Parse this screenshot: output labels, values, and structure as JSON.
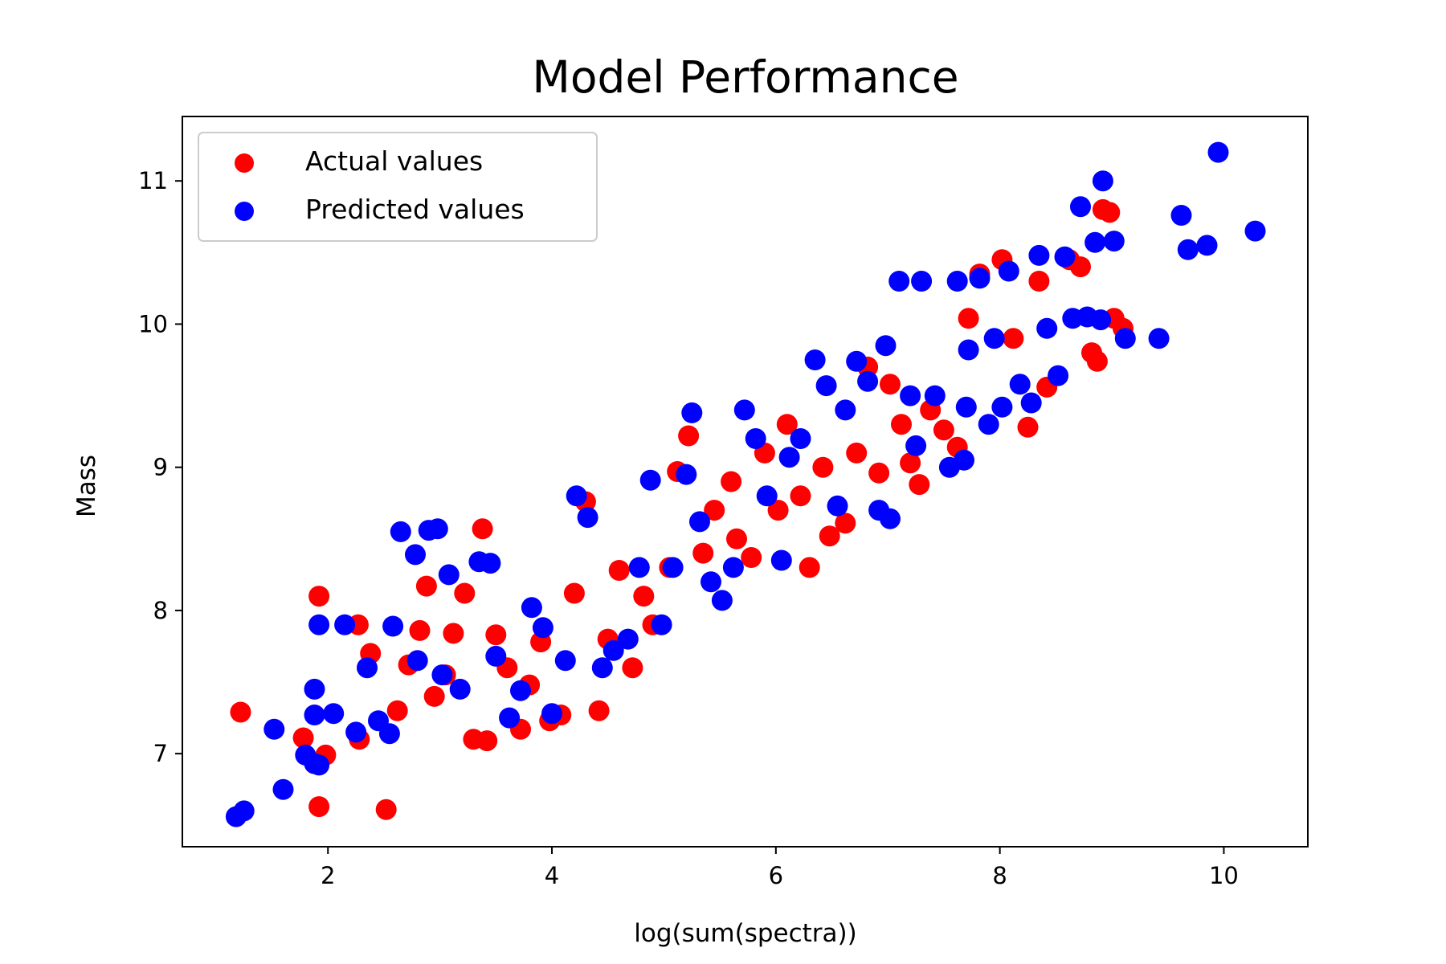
{
  "chart_data": {
    "type": "scatter",
    "title": "Model Performance",
    "xlabel": "log(sum(spectra))",
    "ylabel": "Mass",
    "xlim": [
      0.7,
      10.75
    ],
    "ylim": [
      6.35,
      11.45
    ],
    "xticks": [
      2,
      4,
      6,
      8,
      10
    ],
    "yticks": [
      7,
      8,
      9,
      10,
      11
    ],
    "xtick_labels": [
      "2",
      "4",
      "6",
      "8",
      "10"
    ],
    "ytick_labels": [
      "7",
      "8",
      "9",
      "10",
      "11"
    ],
    "grid": false,
    "legend": {
      "placement": "top-left"
    },
    "series": [
      {
        "name": "Actual values",
        "color": "#ff0000",
        "points": [
          [
            1.22,
            7.29
          ],
          [
            1.78,
            7.11
          ],
          [
            1.92,
            8.1
          ],
          [
            1.92,
            6.63
          ],
          [
            1.98,
            6.99
          ],
          [
            2.27,
            7.9
          ],
          [
            2.28,
            7.1
          ],
          [
            2.38,
            7.7
          ],
          [
            2.52,
            6.61
          ],
          [
            2.62,
            7.3
          ],
          [
            2.72,
            7.62
          ],
          [
            2.82,
            7.86
          ],
          [
            2.88,
            8.17
          ],
          [
            2.95,
            7.4
          ],
          [
            3.05,
            7.55
          ],
          [
            3.12,
            7.84
          ],
          [
            3.22,
            8.12
          ],
          [
            3.3,
            7.1
          ],
          [
            3.38,
            8.57
          ],
          [
            3.42,
            7.09
          ],
          [
            3.5,
            7.83
          ],
          [
            3.6,
            7.6
          ],
          [
            3.72,
            7.17
          ],
          [
            3.8,
            7.48
          ],
          [
            3.9,
            7.78
          ],
          [
            3.98,
            7.23
          ],
          [
            4.08,
            7.27
          ],
          [
            4.2,
            8.12
          ],
          [
            4.3,
            8.76
          ],
          [
            4.42,
            7.3
          ],
          [
            4.5,
            7.8
          ],
          [
            4.6,
            8.28
          ],
          [
            4.72,
            7.6
          ],
          [
            4.82,
            8.1
          ],
          [
            4.9,
            7.9
          ],
          [
            5.05,
            8.3
          ],
          [
            5.12,
            8.97
          ],
          [
            5.22,
            9.22
          ],
          [
            5.35,
            8.4
          ],
          [
            5.45,
            8.7
          ],
          [
            5.6,
            8.9
          ],
          [
            5.65,
            8.5
          ],
          [
            5.78,
            8.37
          ],
          [
            5.9,
            9.1
          ],
          [
            6.02,
            8.7
          ],
          [
            6.1,
            9.3
          ],
          [
            6.22,
            8.8
          ],
          [
            6.3,
            8.3
          ],
          [
            6.42,
            9.0
          ],
          [
            6.48,
            8.52
          ],
          [
            6.62,
            8.61
          ],
          [
            6.72,
            9.1
          ],
          [
            6.82,
            9.7
          ],
          [
            6.92,
            8.96
          ],
          [
            7.02,
            9.58
          ],
          [
            7.12,
            9.3
          ],
          [
            7.2,
            9.03
          ],
          [
            7.28,
            8.88
          ],
          [
            7.38,
            9.4
          ],
          [
            7.5,
            9.26
          ],
          [
            7.62,
            9.14
          ],
          [
            7.72,
            10.04
          ],
          [
            7.82,
            10.35
          ],
          [
            8.02,
            10.45
          ],
          [
            8.12,
            9.9
          ],
          [
            8.25,
            9.28
          ],
          [
            8.42,
            9.56
          ],
          [
            8.62,
            10.45
          ],
          [
            8.72,
            10.4
          ],
          [
            8.82,
            9.8
          ],
          [
            8.87,
            9.74
          ],
          [
            9.02,
            10.04
          ],
          [
            9.1,
            9.97
          ],
          [
            8.92,
            10.8
          ],
          [
            8.98,
            10.78
          ],
          [
            8.35,
            10.3
          ]
        ]
      },
      {
        "name": "Predicted values",
        "color": "#0000ff",
        "points": [
          [
            1.18,
            6.56
          ],
          [
            1.25,
            6.6
          ],
          [
            1.52,
            7.17
          ],
          [
            1.6,
            6.75
          ],
          [
            1.8,
            6.99
          ],
          [
            1.88,
            6.93
          ],
          [
            1.92,
            6.92
          ],
          [
            1.88,
            7.45
          ],
          [
            1.88,
            7.27
          ],
          [
            1.92,
            7.9
          ],
          [
            2.05,
            7.28
          ],
          [
            2.15,
            7.9
          ],
          [
            2.25,
            7.15
          ],
          [
            2.35,
            7.6
          ],
          [
            2.45,
            7.23
          ],
          [
            2.55,
            7.14
          ],
          [
            2.58,
            7.89
          ],
          [
            2.65,
            8.55
          ],
          [
            2.78,
            8.39
          ],
          [
            2.8,
            7.65
          ],
          [
            2.9,
            8.56
          ],
          [
            2.98,
            8.57
          ],
          [
            3.02,
            7.55
          ],
          [
            3.08,
            8.25
          ],
          [
            3.18,
            7.45
          ],
          [
            3.35,
            8.34
          ],
          [
            3.45,
            8.33
          ],
          [
            3.5,
            7.68
          ],
          [
            3.62,
            7.25
          ],
          [
            3.72,
            7.44
          ],
          [
            3.82,
            8.02
          ],
          [
            3.92,
            7.88
          ],
          [
            4.0,
            7.28
          ],
          [
            4.12,
            7.65
          ],
          [
            4.22,
            8.8
          ],
          [
            4.32,
            8.65
          ],
          [
            4.45,
            7.6
          ],
          [
            4.55,
            7.72
          ],
          [
            4.68,
            7.8
          ],
          [
            4.78,
            8.3
          ],
          [
            4.88,
            8.91
          ],
          [
            4.98,
            7.9
          ],
          [
            5.08,
            8.3
          ],
          [
            5.2,
            8.95
          ],
          [
            5.25,
            9.38
          ],
          [
            5.32,
            8.62
          ],
          [
            5.42,
            8.2
          ],
          [
            5.52,
            8.07
          ],
          [
            5.62,
            8.3
          ],
          [
            5.72,
            9.4
          ],
          [
            5.82,
            9.2
          ],
          [
            5.92,
            8.8
          ],
          [
            6.05,
            8.35
          ],
          [
            6.12,
            9.07
          ],
          [
            6.22,
            9.2
          ],
          [
            6.35,
            9.75
          ],
          [
            6.45,
            9.57
          ],
          [
            6.55,
            8.73
          ],
          [
            6.62,
            9.4
          ],
          [
            6.72,
            9.74
          ],
          [
            6.82,
            9.6
          ],
          [
            6.92,
            8.7
          ],
          [
            6.98,
            9.85
          ],
          [
            7.02,
            8.64
          ],
          [
            7.1,
            10.3
          ],
          [
            7.2,
            9.5
          ],
          [
            7.25,
            9.15
          ],
          [
            7.3,
            10.3
          ],
          [
            7.42,
            9.5
          ],
          [
            7.55,
            9.0
          ],
          [
            7.62,
            10.3
          ],
          [
            7.68,
            9.05
          ],
          [
            7.7,
            9.42
          ],
          [
            7.72,
            9.82
          ],
          [
            7.82,
            10.32
          ],
          [
            7.9,
            9.3
          ],
          [
            7.95,
            9.9
          ],
          [
            8.02,
            9.42
          ],
          [
            8.08,
            10.37
          ],
          [
            8.18,
            9.58
          ],
          [
            8.28,
            9.45
          ],
          [
            8.35,
            10.48
          ],
          [
            8.42,
            9.97
          ],
          [
            8.52,
            9.64
          ],
          [
            8.58,
            10.47
          ],
          [
            8.65,
            10.04
          ],
          [
            8.72,
            10.82
          ],
          [
            8.78,
            10.05
          ],
          [
            8.85,
            10.57
          ],
          [
            8.9,
            10.03
          ],
          [
            8.92,
            11.0
          ],
          [
            9.02,
            10.58
          ],
          [
            9.12,
            9.9
          ],
          [
            9.42,
            9.9
          ],
          [
            9.62,
            10.76
          ],
          [
            9.68,
            10.52
          ],
          [
            9.85,
            10.55
          ],
          [
            9.95,
            11.2
          ],
          [
            10.28,
            10.65
          ]
        ]
      }
    ]
  }
}
